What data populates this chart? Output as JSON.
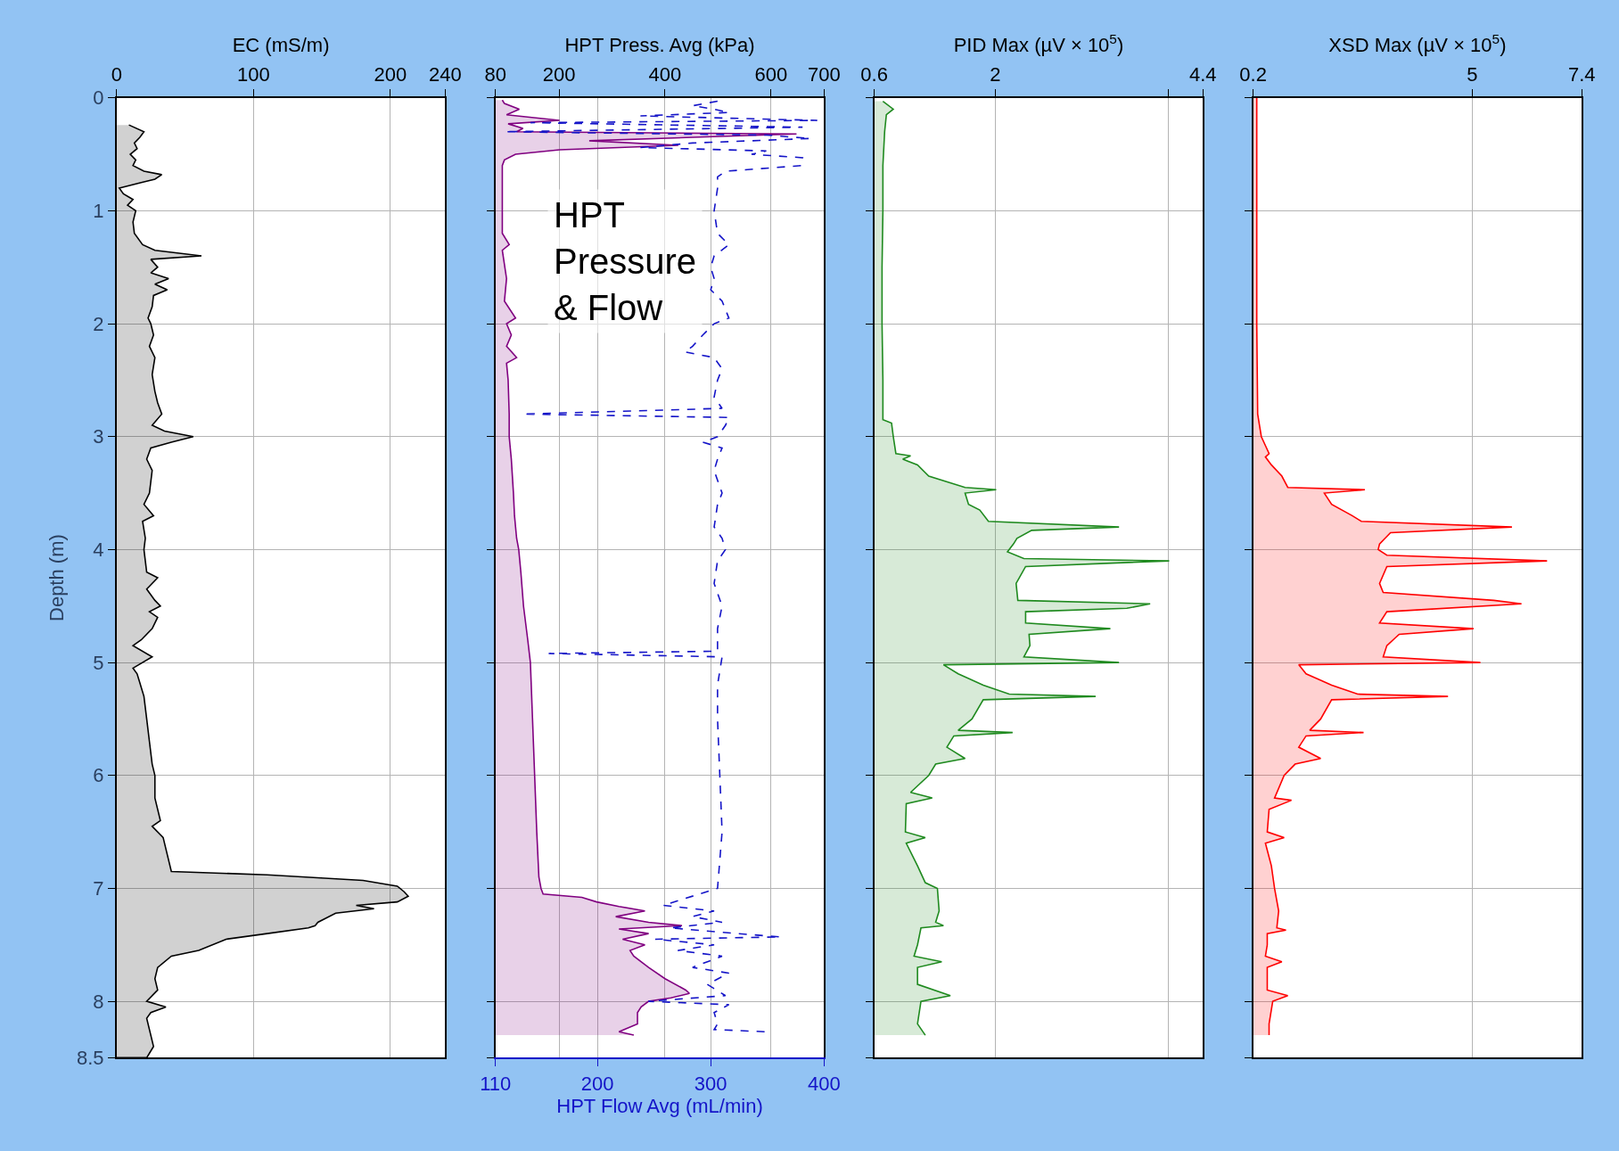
{
  "chart_data": [
    {
      "type": "area",
      "xlabel": "EC (mS/m)",
      "ylabel": "Depth (m)",
      "xlim": [
        0,
        240
      ],
      "xticks": [
        0,
        100,
        200,
        240
      ],
      "ylim": [
        8.5,
        0
      ],
      "yticks": [
        0,
        1,
        2,
        3,
        4,
        5,
        6,
        7,
        8,
        8.5
      ],
      "grid": true,
      "series": [
        {
          "color": "#000000",
          "x": [
            9,
            20,
            17,
            13,
            15,
            10,
            14,
            12,
            20,
            33,
            28,
            18,
            2,
            5,
            12,
            8,
            14,
            12,
            13,
            19,
            28,
            62,
            25,
            30,
            25,
            38,
            28,
            37,
            27,
            26,
            23,
            25,
            27,
            24,
            28,
            26,
            28,
            30,
            33,
            26,
            35,
            56,
            40,
            25,
            22,
            26,
            24,
            20,
            27,
            19,
            21,
            20,
            22,
            30,
            22,
            28,
            32,
            24,
            30,
            26,
            18,
            12,
            26,
            12,
            15,
            20,
            22,
            24,
            26,
            28,
            28,
            32,
            26,
            34,
            37,
            40,
            110,
            180,
            205,
            210,
            213,
            205,
            175,
            188,
            160,
            147,
            145,
            140,
            110,
            80,
            60,
            40,
            30,
            28,
            30,
            22,
            36,
            25,
            22,
            25,
            27,
            22,
            0
          ],
          "values": [
            0.24,
            0.3,
            0.35,
            0.4,
            0.45,
            0.5,
            0.55,
            0.6,
            0.65,
            0.68,
            0.72,
            0.75,
            0.8,
            0.85,
            0.9,
            0.95,
            1.0,
            1.1,
            1.2,
            1.3,
            1.35,
            1.4,
            1.43,
            1.5,
            1.55,
            1.6,
            1.65,
            1.7,
            1.75,
            1.85,
            1.95,
            2.0,
            2.1,
            2.2,
            2.3,
            2.45,
            2.6,
            2.7,
            2.8,
            2.9,
            2.95,
            3.0,
            3.05,
            3.1,
            3.2,
            3.3,
            3.5,
            3.6,
            3.7,
            3.75,
            3.9,
            4.0,
            4.2,
            4.25,
            4.35,
            4.45,
            4.5,
            4.55,
            4.6,
            4.7,
            4.8,
            4.85,
            4.95,
            5.05,
            5.1,
            5.3,
            5.5,
            5.7,
            5.9,
            6.0,
            6.2,
            6.4,
            6.45,
            6.55,
            6.7,
            6.85,
            6.88,
            6.93,
            6.98,
            7.03,
            7.07,
            7.12,
            7.15,
            7.18,
            7.22,
            7.3,
            7.33,
            7.35,
            7.4,
            7.45,
            7.55,
            7.6,
            7.7,
            7.8,
            7.9,
            8.0,
            8.05,
            8.1,
            8.15,
            8.3,
            8.4,
            8.5,
            8.5
          ]
        }
      ]
    },
    {
      "type": "area",
      "xlabel": "HPT Flow Avg (mL/min)",
      "x2label": "HPT Press. Avg (kPa)",
      "xlim": [
        110,
        400
      ],
      "xticks": [
        110,
        200,
        300,
        400
      ],
      "x2lim": [
        80,
        700
      ],
      "x2ticks": [
        80,
        200,
        400,
        600,
        700
      ],
      "ylim": [
        8.5,
        0
      ],
      "yticks": [
        0,
        1,
        2,
        3,
        4,
        5,
        6,
        7,
        8,
        8.5
      ],
      "grid": true,
      "tick_labels": "x",
      "annotations": [
        "HPT\nPressure\n& Flow"
      ],
      "series": [
        {
          "color": "#800080",
          "axis": "x2",
          "x": [
            93,
            97,
            125,
            101,
            201,
            104,
            132,
            120,
            648,
            452,
            257,
            425,
            201,
            118,
            97,
            93,
            93,
            93,
            106,
            93,
            101,
            97,
            118,
            101,
            110,
            101,
            120,
            101,
            104,
            106,
            106,
            110,
            114,
            116,
            120,
            124,
            128,
            133,
            141,
            146,
            150,
            154,
            158,
            162,
            166,
            170,
            243,
            271,
            313,
            362,
            307,
            369,
            432,
            313,
            369,
            320,
            362,
            334,
            341,
            369,
            400,
            439,
            446,
            411,
            369,
            355,
            348,
            348,
            313,
            341
          ],
          "values": [
            0.02,
            0.05,
            0.1,
            0.15,
            0.2,
            0.23,
            0.27,
            0.3,
            0.32,
            0.35,
            0.38,
            0.42,
            0.46,
            0.5,
            0.55,
            0.6,
            1.0,
            1.2,
            1.3,
            1.35,
            1.6,
            1.8,
            1.95,
            2.0,
            2.1,
            2.2,
            2.3,
            2.35,
            2.5,
            2.8,
            3.0,
            3.2,
            3.5,
            3.7,
            3.9,
            4.0,
            4.2,
            4.5,
            4.8,
            5.0,
            5.5,
            6.0,
            6.5,
            6.9,
            7.0,
            7.05,
            7.08,
            7.12,
            7.16,
            7.2,
            7.25,
            7.3,
            7.33,
            7.36,
            7.4,
            7.45,
            7.5,
            7.55,
            7.6,
            7.7,
            7.8,
            7.9,
            7.93,
            7.97,
            8.0,
            8.05,
            8.1,
            8.2,
            8.27,
            8.3
          ]
        },
        {
          "type": "line",
          "color": "#1414c8",
          "line_style": "dashed",
          "x": [
            306,
            284,
            303,
            316,
            238,
            394,
            141,
            381,
            118,
            349,
            388,
            284,
            238,
            349,
            336,
            381,
            380,
            380,
            313,
            306,
            306,
            303,
            306,
            316,
            303,
            300,
            303,
            300,
            310,
            316,
            303,
            293,
            284,
            277,
            303,
            310,
            306,
            303,
            310,
            134,
            316,
            313,
            306,
            293,
            310,
            306,
            303,
            310,
            306,
            303,
            310,
            313,
            306,
            303,
            310,
            306,
            306,
            157,
            310,
            306,
            306,
            308,
            310,
            306,
            258,
            303,
            284,
            310,
            264,
            323,
            362,
            251,
            303,
            271,
            310,
            284,
            316,
            297,
            313,
            245,
            316,
            303,
            306,
            303,
            349
          ],
          "values": [
            0.03,
            0.07,
            0.1,
            0.13,
            0.16,
            0.2,
            0.22,
            0.26,
            0.3,
            0.33,
            0.36,
            0.4,
            0.44,
            0.47,
            0.5,
            0.53,
            0.56,
            0.6,
            0.65,
            0.7,
            0.8,
            1.0,
            1.2,
            1.3,
            1.4,
            1.5,
            1.6,
            1.7,
            1.8,
            1.95,
            2.0,
            2.1,
            2.2,
            2.25,
            2.3,
            2.4,
            2.5,
            2.65,
            2.75,
            2.8,
            2.83,
            2.9,
            3.0,
            3.05,
            3.1,
            3.2,
            3.3,
            3.5,
            3.6,
            3.8,
            3.9,
            4.0,
            4.1,
            4.3,
            4.5,
            4.7,
            4.9,
            4.92,
            4.95,
            5.2,
            5.5,
            6.0,
            6.5,
            7.0,
            7.15,
            7.2,
            7.25,
            7.3,
            7.35,
            7.4,
            7.43,
            7.45,
            7.5,
            7.55,
            7.6,
            7.7,
            7.75,
            7.85,
            7.95,
            8.0,
            8.03,
            8.1,
            8.2,
            8.25,
            8.27
          ]
        }
      ]
    },
    {
      "type": "area",
      "xlabel": "PID Max (µV × 10$^{5}$)",
      "xlim": [
        0.6,
        4.4
      ],
      "xticks": [
        0.6,
        2,
        {
          "value": 4,
          "label": null
        },
        4.4
      ],
      "ylim": [
        8.5,
        0
      ],
      "yticks": [
        0,
        1,
        2,
        3,
        4,
        5,
        6,
        7,
        8,
        8.5
      ],
      "grid": true,
      "tick_labels": "x",
      "series": [
        {
          "color": "#1f8a1f",
          "x": [
            0.7,
            0.82,
            0.74,
            0.72,
            0.7,
            0.7,
            0.69,
            0.69,
            0.7,
            0.7,
            0.8,
            0.82,
            0.85,
            1.02,
            0.93,
            1.1,
            1.23,
            1.65,
            2.01,
            1.65,
            1.69,
            1.82,
            1.92,
            3.43,
            2.42,
            2.25,
            2.21,
            2.14,
            2.33,
            4.01,
            2.35,
            2.24,
            2.26,
            3.79,
            3.52,
            2.35,
            2.35,
            3.33,
            2.39,
            2.4,
            2.33,
            3.43,
            1.4,
            1.57,
            1.86,
            2.16,
            3.16,
            1.86,
            1.73,
            1.57,
            2.2,
            1.52,
            1.44,
            1.65,
            1.31,
            1.23,
            1.02,
            1.27,
            0.97,
            0.96,
            1.19,
            0.97,
            1.1,
            1.19,
            1.33,
            1.35,
            1.31,
            1.4,
            1.14,
            1.1,
            1.06,
            1.38,
            1.1,
            1.1,
            1.48,
            1.14,
            1.1,
            1.19
          ],
          "values": [
            0.03,
            0.1,
            0.15,
            0.3,
            0.6,
            1.0,
            1.5,
            2.0,
            2.5,
            2.85,
            2.88,
            3.0,
            3.15,
            3.17,
            3.2,
            3.25,
            3.35,
            3.45,
            3.47,
            3.5,
            3.6,
            3.65,
            3.75,
            3.8,
            3.83,
            3.9,
            3.95,
            4.02,
            4.08,
            4.1,
            4.15,
            4.3,
            4.45,
            4.48,
            4.52,
            4.55,
            4.65,
            4.7,
            4.75,
            4.85,
            4.95,
            5.0,
            5.02,
            5.1,
            5.2,
            5.28,
            5.3,
            5.33,
            5.5,
            5.6,
            5.62,
            5.65,
            5.75,
            5.85,
            5.9,
            6.0,
            6.15,
            6.2,
            6.25,
            6.5,
            6.55,
            6.6,
            6.8,
            6.95,
            7.0,
            7.2,
            7.3,
            7.33,
            7.35,
            7.5,
            7.6,
            7.65,
            7.7,
            7.85,
            7.95,
            8.0,
            8.2,
            8.3
          ]
        }
      ]
    },
    {
      "type": "area",
      "xlabel": "XSD Max (µV × 10$^{5}$)",
      "xlim": [
        0.2,
        7.4
      ],
      "xticks": [
        0.2,
        5,
        7.4
      ],
      "ylim": [
        8.5,
        0
      ],
      "yticks": [
        0,
        1,
        2,
        3,
        4,
        5,
        6,
        7,
        8,
        8.5
      ],
      "grid": true,
      "tick_labels": "x",
      "series": [
        {
          "color": "#ff0000",
          "x": [
            0.28,
            0.28,
            0.28,
            0.28,
            0.3,
            0.34,
            0.38,
            0.55,
            0.47,
            0.6,
            0.83,
            0.96,
            2.65,
            1.76,
            1.92,
            2.37,
            2.57,
            5.87,
            3.21,
            2.97,
            2.94,
            3.13,
            6.64,
            3.13,
            2.97,
            3.05,
            5.47,
            6.08,
            3.13,
            2.97,
            5.03,
            3.4,
            3.13,
            3.05,
            5.18,
            1.2,
            1.36,
            1.92,
            2.49,
            4.47,
            1.92,
            1.68,
            1.44,
            2.62,
            1.36,
            1.2,
            1.68,
            1.12,
            0.88,
            0.67,
            1.04,
            0.55,
            0.51,
            0.88,
            0.47,
            0.6,
            0.67,
            0.76,
            0.72,
            0.92,
            0.51,
            0.51,
            0.47,
            0.83,
            0.51,
            0.51,
            0.96,
            0.63,
            0.55,
            0.55
          ],
          "values": [
            0.0,
            0.5,
            1.0,
            2.0,
            2.8,
            2.9,
            3.0,
            3.15,
            3.18,
            3.25,
            3.35,
            3.45,
            3.47,
            3.5,
            3.6,
            3.7,
            3.75,
            3.8,
            3.85,
            3.95,
            4.0,
            4.05,
            4.1,
            4.15,
            4.3,
            4.38,
            4.45,
            4.48,
            4.55,
            4.65,
            4.7,
            4.75,
            4.85,
            4.95,
            5.0,
            5.02,
            5.1,
            5.2,
            5.28,
            5.3,
            5.33,
            5.5,
            5.6,
            5.62,
            5.65,
            5.75,
            5.85,
            5.9,
            6.0,
            6.2,
            6.22,
            6.3,
            6.5,
            6.55,
            6.6,
            6.8,
            7.0,
            7.2,
            7.35,
            7.37,
            7.4,
            7.5,
            7.6,
            7.65,
            7.7,
            7.9,
            7.95,
            8.0,
            8.2,
            8.3
          ]
        }
      ]
    }
  ]
}
